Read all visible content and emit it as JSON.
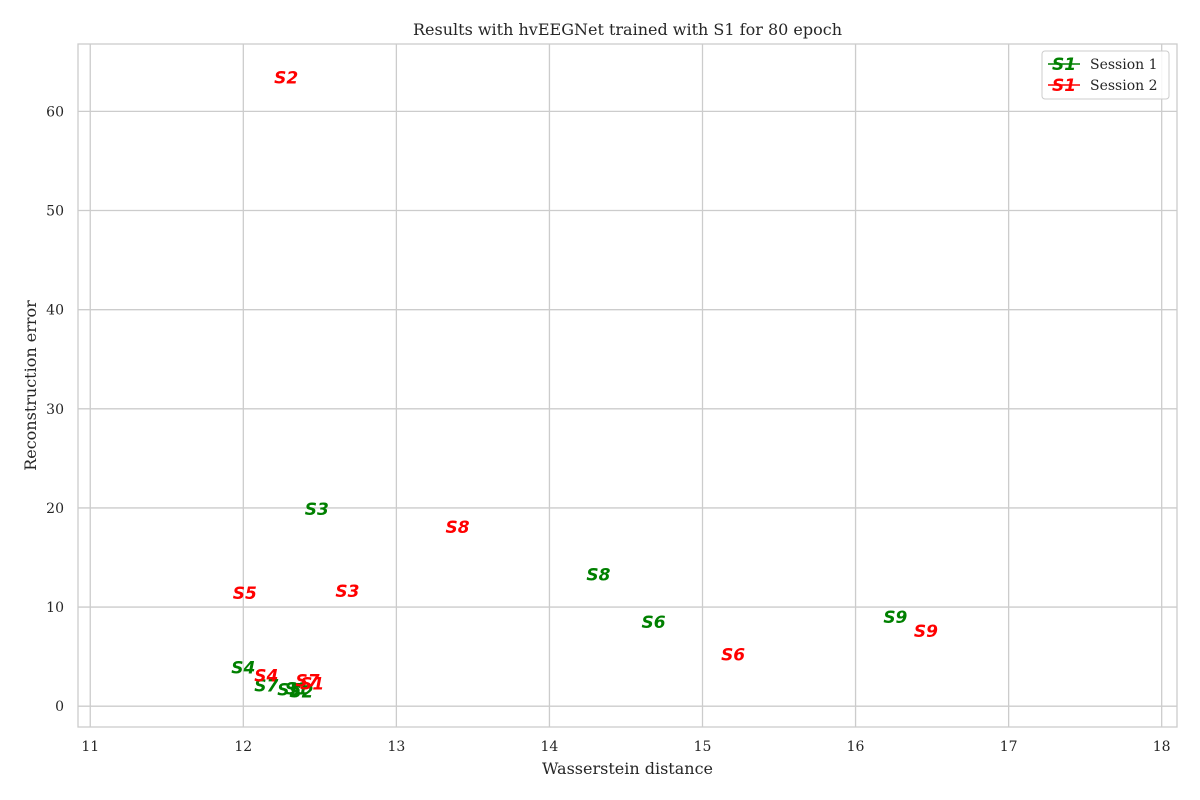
{
  "chart_data": {
    "type": "scatter",
    "title": "Results with hvEEGNet trained with S1 for 80 epoch",
    "xlabel": "Wasserstein distance",
    "ylabel": "Reconstruction error",
    "xlim": [
      10.92,
      18.1
    ],
    "ylim": [
      -2.1,
      66.8
    ],
    "xticks": [
      11,
      12,
      13,
      14,
      15,
      16,
      17,
      18
    ],
    "yticks": [
      0,
      10,
      20,
      30,
      40,
      50,
      60
    ],
    "grid": true,
    "legend_position": "top-right",
    "legend": [
      {
        "marker_text": "S1",
        "label": "Session 1",
        "color": "#008000"
      },
      {
        "marker_text": "S1",
        "label": "Session 2",
        "color": "#ff0000"
      }
    ],
    "series": [
      {
        "name": "Session 1",
        "color": "#008000",
        "points": [
          {
            "label": "S1",
            "x": 12.35,
            "y": 1.8
          },
          {
            "label": "S2",
            "x": 12.38,
            "y": 1.5
          },
          {
            "label": "S3",
            "x": 12.48,
            "y": 19.9
          },
          {
            "label": "S4",
            "x": 12.0,
            "y": 3.9
          },
          {
            "label": "S5",
            "x": 12.3,
            "y": 1.7
          },
          {
            "label": "S6",
            "x": 14.68,
            "y": 8.5
          },
          {
            "label": "S7",
            "x": 12.15,
            "y": 2.1
          },
          {
            "label": "S8",
            "x": 14.32,
            "y": 13.3
          },
          {
            "label": "S9",
            "x": 16.26,
            "y": 9.0
          }
        ]
      },
      {
        "name": "Session 2",
        "color": "#ff0000",
        "points": [
          {
            "label": "S1",
            "x": 12.45,
            "y": 2.3
          },
          {
            "label": "S2",
            "x": 12.28,
            "y": 63.4
          },
          {
            "label": "S3",
            "x": 12.68,
            "y": 11.6
          },
          {
            "label": "S4",
            "x": 12.15,
            "y": 3.1
          },
          {
            "label": "S5",
            "x": 12.01,
            "y": 11.4
          },
          {
            "label": "S6",
            "x": 15.2,
            "y": 5.2
          },
          {
            "label": "S7",
            "x": 12.42,
            "y": 2.6
          },
          {
            "label": "S8",
            "x": 13.4,
            "y": 18.1
          },
          {
            "label": "S9",
            "x": 16.46,
            "y": 7.6
          }
        ]
      }
    ]
  }
}
